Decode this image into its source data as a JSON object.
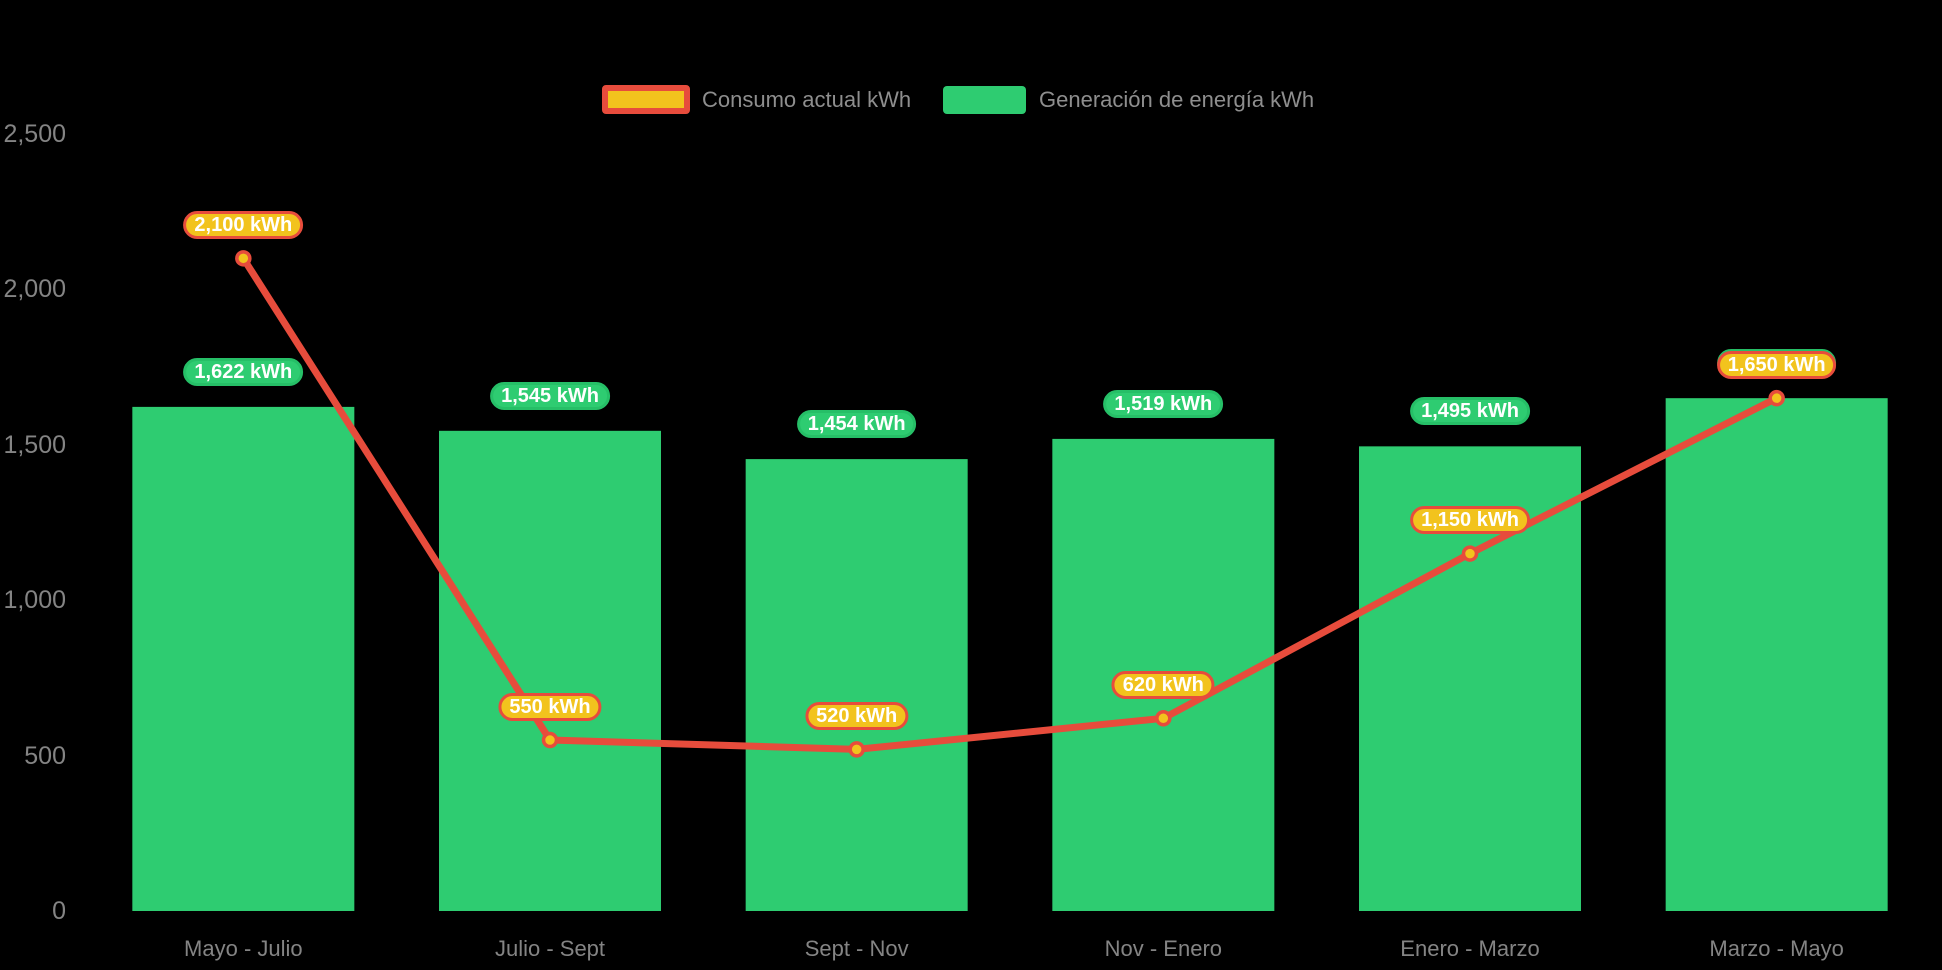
{
  "legend": {
    "items": [
      {
        "label": "Consumo actual kWh",
        "series_type": "line"
      },
      {
        "label": "Generación de energía kWh",
        "series_type": "bar"
      }
    ]
  },
  "chart_data": {
    "type": "bar+line combo",
    "title": "",
    "categories": [
      "Mayo - Julio",
      "Julio - Sept",
      "Sept - Nov",
      "Nov - Enero",
      "Enero - Marzo",
      "Marzo - Mayo"
    ],
    "series": [
      {
        "name": "Generación de energía kWh",
        "type": "bar",
        "color": "#2ecc71",
        "values": [
          1622,
          1545,
          1454,
          1519,
          1495,
          1650
        ],
        "data_labels": [
          "1,622 kWh",
          "1,545 kWh",
          "1,454 kWh",
          "1,519 kWh",
          "1,495 kWh",
          "1,650 kWh"
        ]
      },
      {
        "name": "Consumo actual kWh",
        "type": "line",
        "color": "#e74c3c",
        "marker_color": "#f2c31d",
        "values": [
          2100,
          550,
          520,
          620,
          1150,
          1650
        ],
        "data_labels": [
          "2,100 kWh",
          "550 kWh",
          "520 kWh",
          "620 kWh",
          "1,150 kWh",
          "1,650 kWh"
        ]
      }
    ],
    "ylim": [
      0,
      2500
    ],
    "ytick_values": [
      0,
      500,
      1000,
      1500,
      2000,
      2500
    ],
    "ytick_labels": [
      "0",
      "500",
      "1,000",
      "1,500",
      "2,000",
      "2,500"
    ],
    "grid": false,
    "axis_lines": false,
    "legend_position": "top-center",
    "background": "#000000"
  },
  "colors": {
    "bar": "#2ecc71",
    "bar_pill_border": "#26bf67",
    "line": "#e74c3c",
    "marker_fill": "#f2c31d",
    "pill_fill_line": "#f2c31d",
    "pill_text": "#ffffff",
    "axis_text": "#848484",
    "legend_text": "#8e8e8e",
    "background": "#000000"
  }
}
